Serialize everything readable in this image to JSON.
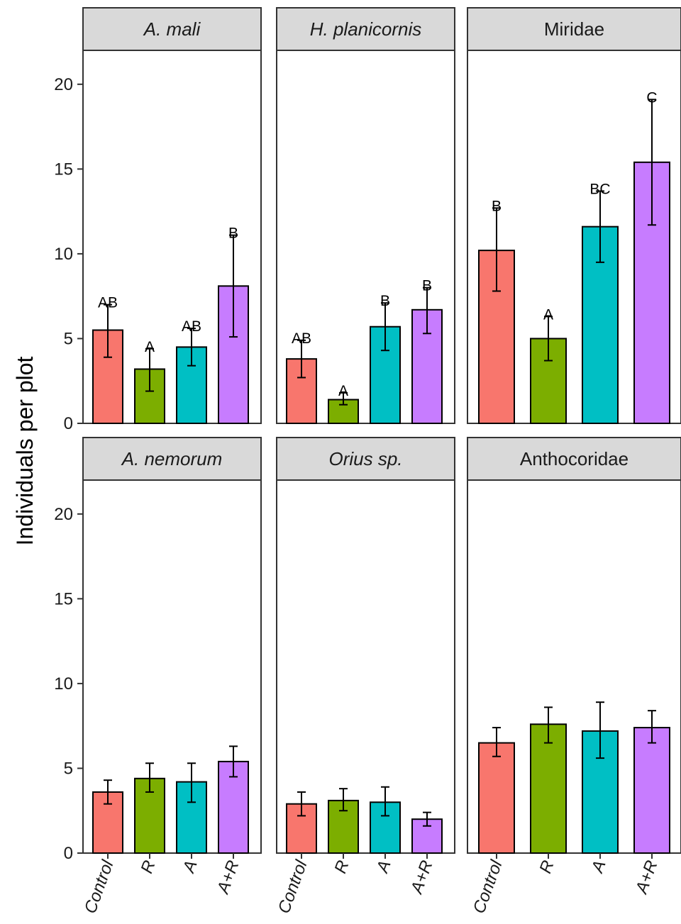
{
  "chart_data": {
    "type": "bar",
    "ylabel": "Individuals per plot",
    "ylim": [
      0,
      22
    ],
    "yticks": [
      0,
      5,
      10,
      15,
      20
    ],
    "categories": [
      "Control",
      "R",
      "A",
      "A+R"
    ],
    "colors": [
      "#F8766D",
      "#7CAE00",
      "#00BFC4",
      "#C77CFF"
    ],
    "panels": [
      {
        "label": "A. mali",
        "italic": true,
        "values": [
          5.5,
          3.2,
          4.5,
          8.1
        ],
        "err_low": [
          3.9,
          1.9,
          3.4,
          5.1
        ],
        "err_high": [
          7.0,
          4.4,
          5.6,
          11.1
        ],
        "letters": [
          "AB",
          "A",
          "AB",
          "B"
        ]
      },
      {
        "label": "H. planicornis",
        "italic": true,
        "values": [
          3.8,
          1.4,
          5.7,
          6.7
        ],
        "err_low": [
          2.7,
          1.1,
          4.3,
          5.3
        ],
        "err_high": [
          4.9,
          1.8,
          7.1,
          8.0
        ],
        "letters": [
          "AB",
          "A",
          "B",
          "B"
        ]
      },
      {
        "label": "Miridae",
        "italic": false,
        "values": [
          10.2,
          5.0,
          11.6,
          15.4
        ],
        "err_low": [
          7.8,
          3.7,
          9.5,
          11.7
        ],
        "err_high": [
          12.7,
          6.3,
          13.7,
          19.1
        ],
        "letters": [
          "B",
          "A",
          "BC",
          "C"
        ]
      },
      {
        "label": "A. nemorum",
        "italic": true,
        "values": [
          3.6,
          4.4,
          4.2,
          5.4
        ],
        "err_low": [
          2.9,
          3.6,
          3.0,
          4.5
        ],
        "err_high": [
          4.3,
          5.3,
          5.3,
          6.3
        ],
        "letters": [
          "",
          "",
          "",
          ""
        ]
      },
      {
        "label": "Orius sp.",
        "italic": true,
        "values": [
          2.9,
          3.1,
          3.0,
          2.0
        ],
        "err_low": [
          2.2,
          2.5,
          2.2,
          1.6
        ],
        "err_high": [
          3.6,
          3.8,
          3.9,
          2.4
        ],
        "letters": [
          "",
          "",
          "",
          ""
        ]
      },
      {
        "label": "Anthocoridae",
        "italic": false,
        "values": [
          6.5,
          7.6,
          7.2,
          7.4
        ],
        "err_low": [
          5.7,
          6.5,
          5.6,
          6.5
        ],
        "err_high": [
          7.4,
          8.6,
          8.9,
          8.4
        ],
        "letters": [
          "",
          "",
          "",
          ""
        ]
      }
    ]
  }
}
